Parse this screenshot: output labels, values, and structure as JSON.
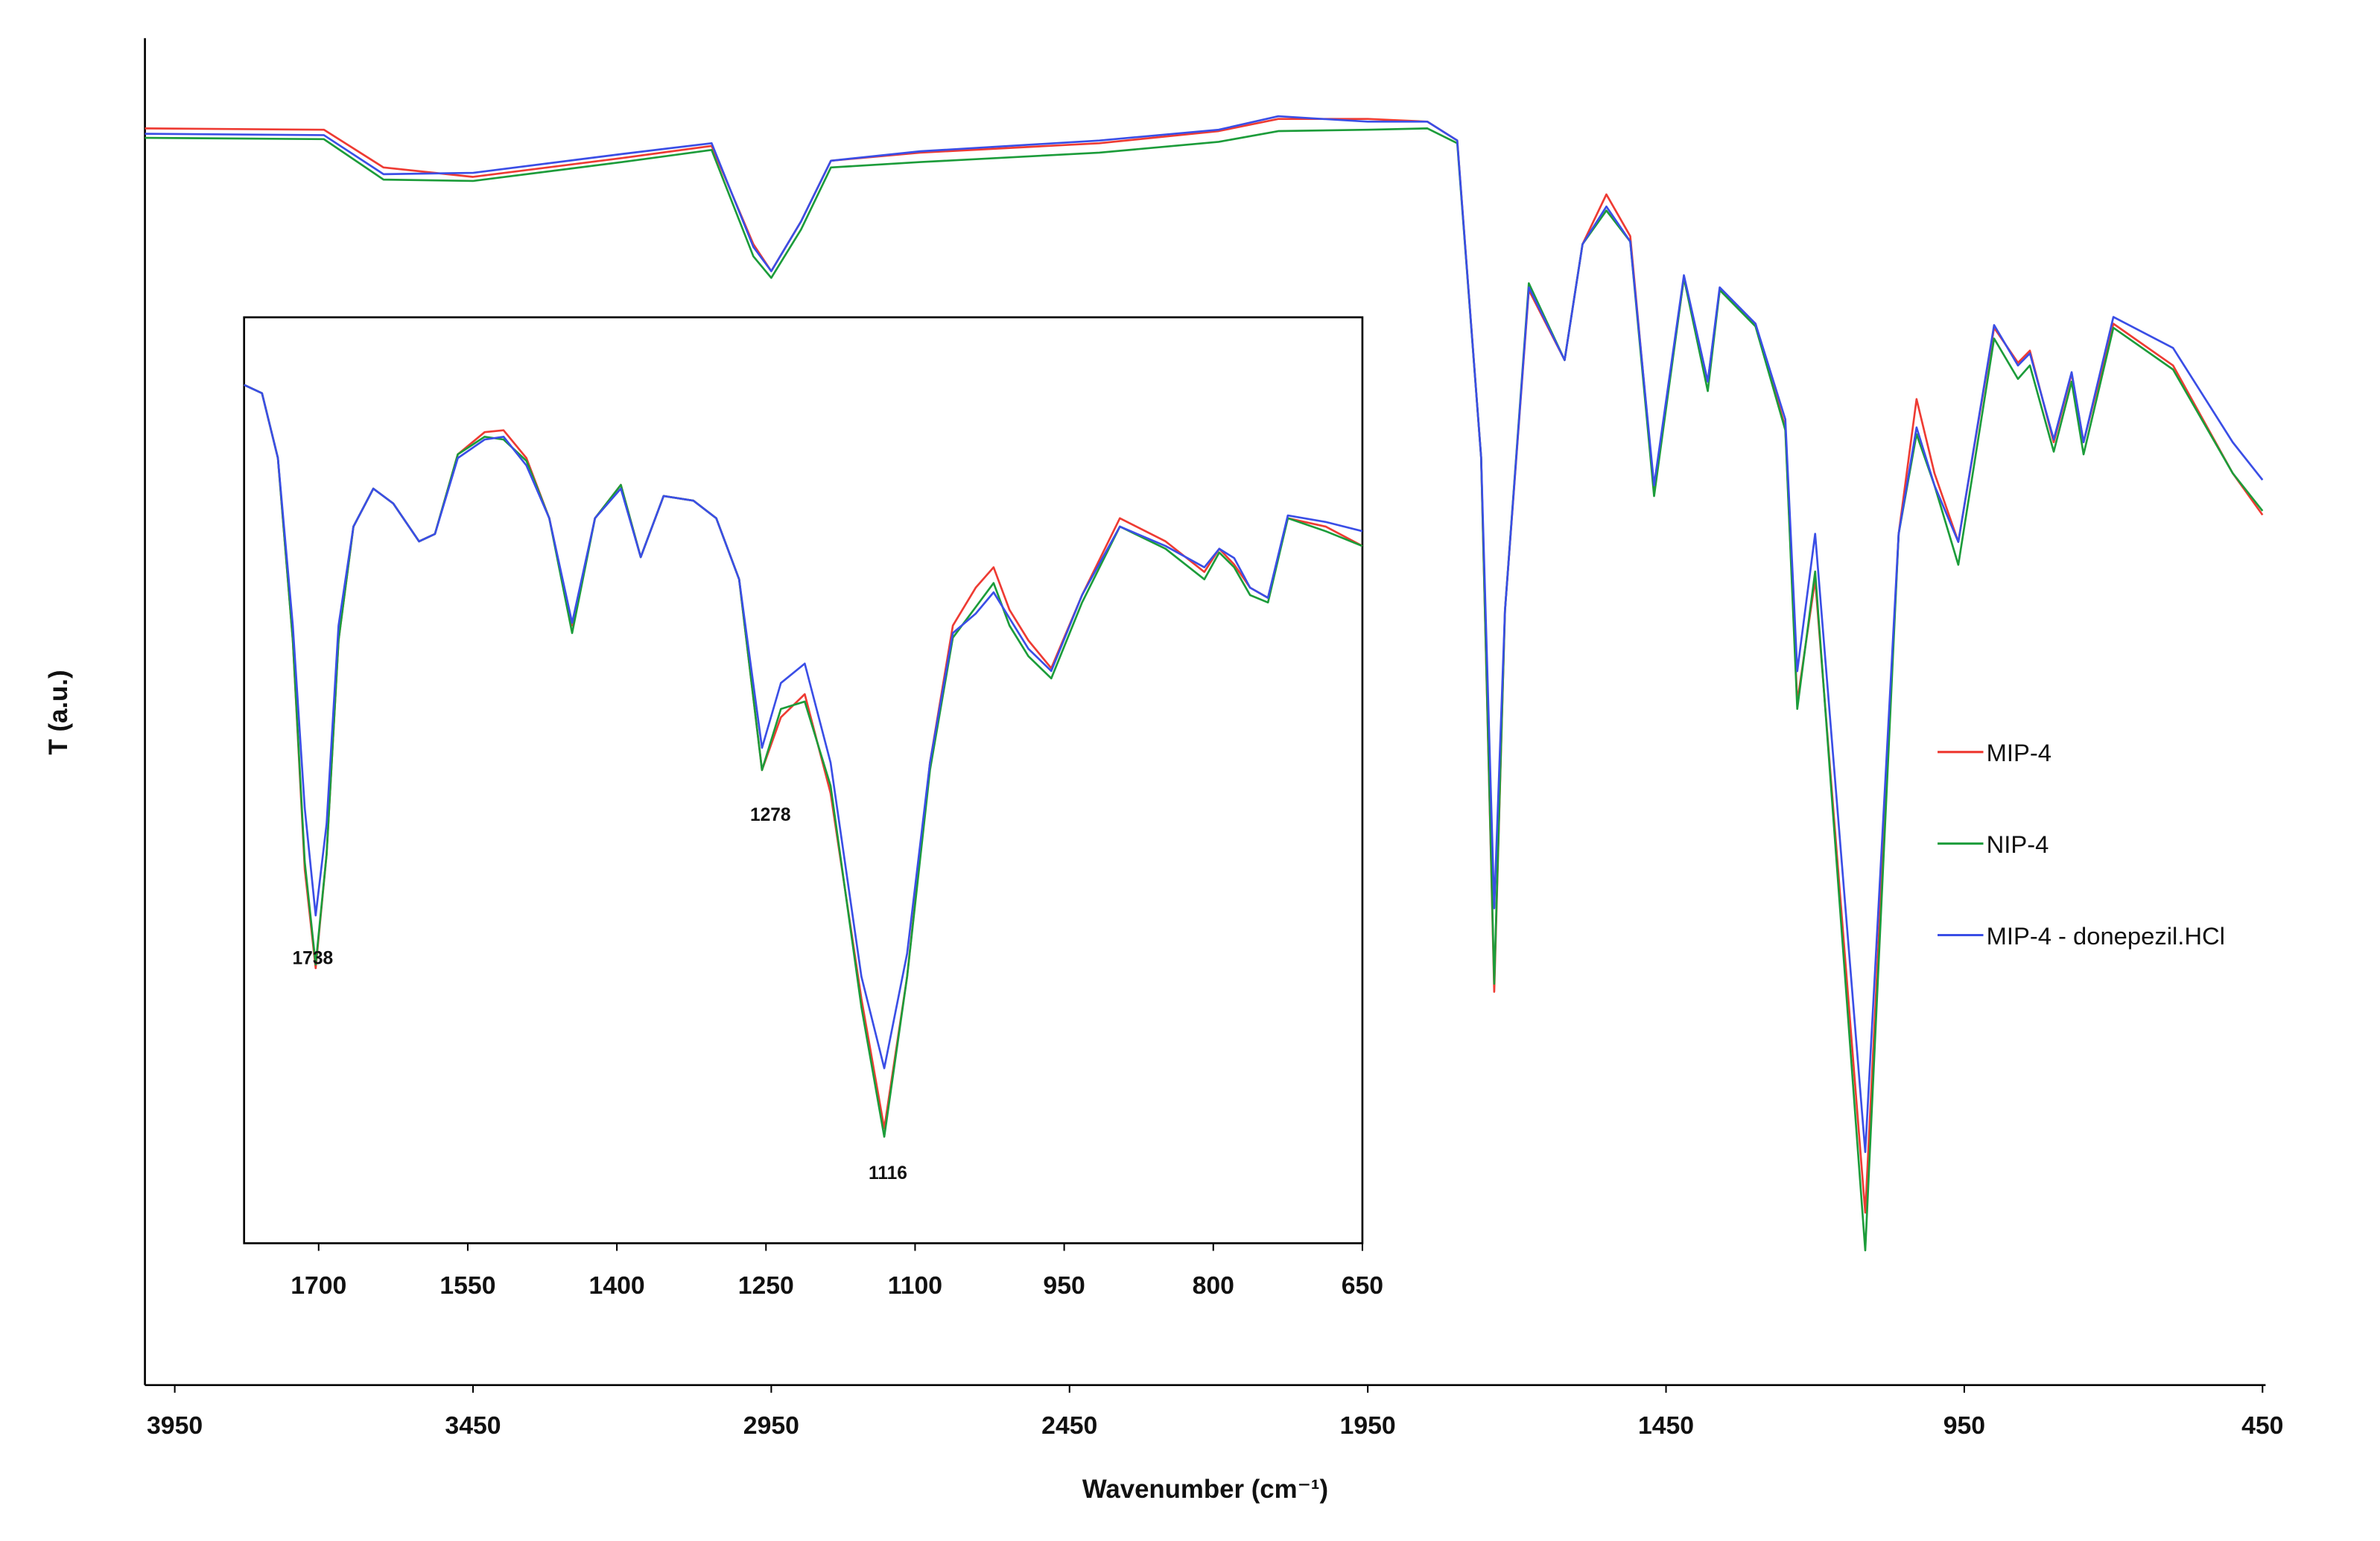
{
  "chart_data": [
    {
      "type": "line",
      "x_label": "Wavenumber (cm⁻¹)",
      "y_label": "T (a.u.)",
      "xlim": [
        4000,
        450
      ],
      "ylim": [
        0,
        100
      ],
      "xticks": [
        3950,
        3450,
        2950,
        2450,
        1950,
        1450,
        950,
        450
      ],
      "legend": "right",
      "x": [
        4000,
        3700,
        3600,
        3450,
        3200,
        3050,
        2980,
        2950,
        2900,
        2850,
        2700,
        2400,
        2200,
        2100,
        1950,
        1850,
        1800,
        1760,
        1738,
        1720,
        1680,
        1620,
        1590,
        1550,
        1510,
        1470,
        1420,
        1380,
        1360,
        1300,
        1250,
        1230,
        1200,
        1116,
        1060,
        1030,
        1000,
        960,
        900,
        860,
        840,
        800,
        770,
        750,
        700,
        600,
        500,
        450
      ],
      "series": [
        {
          "name": "MIP-4",
          "color": "#ee3b33",
          "values": [
            93.3,
            93.2,
            90.4,
            89.7,
            91.1,
            92.0,
            84.7,
            82.7,
            86.4,
            90.9,
            91.5,
            92.2,
            93.1,
            94.0,
            94.0,
            93.8,
            92.4,
            68.9,
            29.2,
            57.5,
            81.3,
            76.1,
            84.7,
            88.4,
            85.3,
            66.4,
            82.2,
            74.5,
            81.3,
            78.8,
            71.1,
            50.7,
            59.8,
            12.8,
            63.2,
            73.2,
            67.7,
            62.6,
            78.5,
            75.9,
            76.8,
            70.0,
            75.1,
            70.0,
            78.8,
            75.7,
            67.7,
            64.6
          ]
        },
        {
          "name": "NIP-4",
          "color": "#1c9c3a",
          "values": [
            92.6,
            92.5,
            89.5,
            89.4,
            90.8,
            91.7,
            83.8,
            82.2,
            85.8,
            90.4,
            90.8,
            91.5,
            92.3,
            93.1,
            93.2,
            93.3,
            92.2,
            68.9,
            29.8,
            57.5,
            81.8,
            76.1,
            84.7,
            87.2,
            84.9,
            66.0,
            82.2,
            73.8,
            81.3,
            78.6,
            70.9,
            50.2,
            60.4,
            10.0,
            63.2,
            70.6,
            66.8,
            60.9,
            77.7,
            74.7,
            75.7,
            69.3,
            74.5,
            69.1,
            78.5,
            75.4,
            67.7,
            64.9
          ]
        },
        {
          "name": "MIP-4 - donepezil.HCl",
          "color": "#3a4ee6",
          "values": [
            92.9,
            92.8,
            89.9,
            90.0,
            91.4,
            92.2,
            84.5,
            82.7,
            86.4,
            90.9,
            91.6,
            92.4,
            93.2,
            94.2,
            93.8,
            93.8,
            92.4,
            68.9,
            35.4,
            57.5,
            81.5,
            76.1,
            84.7,
            87.5,
            84.9,
            66.8,
            82.4,
            74.5,
            81.5,
            78.8,
            71.7,
            53.0,
            63.2,
            17.3,
            63.2,
            71.1,
            66.8,
            62.6,
            78.7,
            75.7,
            76.6,
            70.2,
            75.2,
            70.0,
            79.3,
            77.0,
            70.0,
            67.2
          ]
        }
      ]
    },
    {
      "type": "line",
      "xlim": [
        1775,
        650
      ],
      "ylim": [
        0,
        100
      ],
      "xticks": [
        1700,
        1550,
        1400,
        1250,
        1100,
        950,
        800,
        650
      ],
      "annotations": [
        "1738",
        "1278",
        "1116"
      ],
      "x": [
        1775,
        1757,
        1741,
        1726,
        1714,
        1703,
        1692,
        1680,
        1665,
        1645,
        1625,
        1599,
        1583,
        1560,
        1533,
        1514,
        1491,
        1468,
        1445,
        1422,
        1396,
        1376,
        1353,
        1323,
        1300,
        1277,
        1254,
        1235,
        1211,
        1185,
        1154,
        1131,
        1108,
        1085,
        1062,
        1039,
        1021,
        1005,
        986,
        963,
        932,
        894,
        848,
        809,
        794,
        779,
        763,
        745,
        725,
        687,
        650
      ],
      "series": [
        {
          "color": "#ee3b33",
          "values": [
            92.7,
            91.8,
            84.8,
            65.1,
            40.4,
            29.7,
            42.0,
            65.1,
            77.4,
            81.5,
            79.9,
            75.8,
            76.6,
            85.2,
            87.6,
            87.8,
            84.8,
            78.3,
            66.7,
            78.3,
            81.9,
            74.1,
            80.7,
            80.2,
            78.3,
            71.7,
            51.1,
            56.8,
            59.3,
            48.6,
            26.4,
            12.4,
            28.8,
            51.9,
            66.7,
            70.8,
            73.0,
            68.4,
            65.1,
            62.1,
            70.0,
            78.3,
            75.8,
            72.5,
            75.0,
            73.3,
            70.8,
            69.7,
            78.3,
            77.4,
            75.3
          ]
        },
        {
          "color": "#1c9c3a",
          "values": [
            92.7,
            91.8,
            84.8,
            65.1,
            41.2,
            30.1,
            42.0,
            65.1,
            77.4,
            81.5,
            79.9,
            75.8,
            76.6,
            85.2,
            87.1,
            86.8,
            84.5,
            78.3,
            65.9,
            78.3,
            81.9,
            74.1,
            80.7,
            80.2,
            78.3,
            71.7,
            51.1,
            57.7,
            58.5,
            49.4,
            25.5,
            11.5,
            28.8,
            51.1,
            65.4,
            68.7,
            71.3,
            66.7,
            63.4,
            61.0,
            69.2,
            77.4,
            75.0,
            71.7,
            74.6,
            73.0,
            70.0,
            69.2,
            78.3,
            76.9,
            75.3
          ]
        },
        {
          "color": "#3a4ee6",
          "values": [
            92.7,
            91.8,
            84.8,
            66.7,
            47.0,
            35.4,
            45.3,
            66.7,
            77.4,
            81.5,
            79.9,
            75.8,
            76.6,
            84.8,
            86.8,
            87.1,
            84.0,
            78.3,
            67.0,
            78.3,
            81.5,
            74.1,
            80.7,
            80.2,
            78.3,
            71.7,
            53.5,
            60.5,
            62.6,
            51.9,
            28.8,
            18.9,
            31.3,
            51.9,
            65.9,
            68.0,
            70.3,
            67.5,
            64.2,
            61.8,
            70.0,
            77.4,
            75.3,
            73.0,
            75.0,
            74.0,
            70.8,
            69.7,
            78.6,
            77.9,
            76.9
          ]
        }
      ]
    }
  ]
}
